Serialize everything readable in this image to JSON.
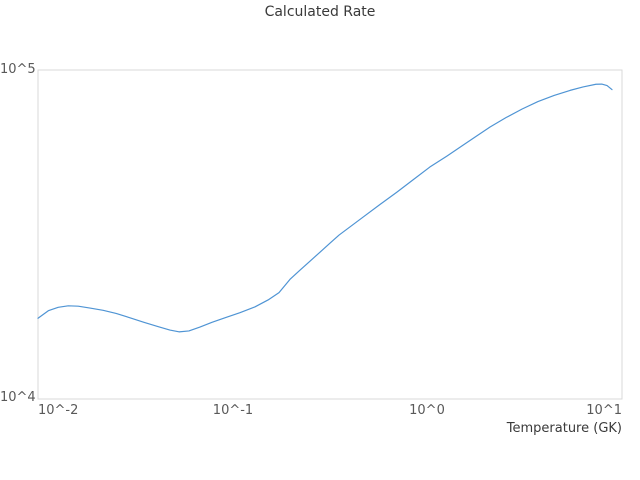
{
  "chart_data": {
    "type": "line",
    "title": "Calculated Rate",
    "xlabel": "Temperature (GK)",
    "ylabel": "",
    "x_scale": "log",
    "y_scale": "log",
    "xlim": [
      0.01,
      10
    ],
    "ylim": [
      10000,
      100000
    ],
    "grid": false,
    "legend": false,
    "x_tick_labels": [
      "10^-2",
      "10^-1",
      "10^0",
      "10^1"
    ],
    "x_tick_values": [
      0.01,
      0.1,
      1,
      10
    ],
    "y_tick_labels": [
      "10^4",
      "10^5"
    ],
    "y_tick_values": [
      10000,
      100000
    ],
    "series": [
      {
        "name": "calculated-rate",
        "color": "#4f94d4",
        "points": [
          [
            0.01,
            17600
          ],
          [
            0.0113,
            18550
          ],
          [
            0.0127,
            19000
          ],
          [
            0.0143,
            19200
          ],
          [
            0.0161,
            19150
          ],
          [
            0.0185,
            18900
          ],
          [
            0.0216,
            18600
          ],
          [
            0.0252,
            18200
          ],
          [
            0.0297,
            17650
          ],
          [
            0.035,
            17100
          ],
          [
            0.0413,
            16600
          ],
          [
            0.0476,
            16200
          ],
          [
            0.053,
            16000
          ],
          [
            0.0596,
            16100
          ],
          [
            0.0679,
            16550
          ],
          [
            0.0783,
            17100
          ],
          [
            0.0924,
            17700
          ],
          [
            0.109,
            18300
          ],
          [
            0.13,
            19050
          ],
          [
            0.152,
            20000
          ],
          [
            0.173,
            21050
          ],
          [
            0.197,
            23100
          ],
          [
            0.222,
            24650
          ],
          [
            0.25,
            26250
          ],
          [
            0.281,
            27950
          ],
          [
            0.316,
            29750
          ],
          [
            0.352,
            31500
          ],
          [
            0.467,
            35700
          ],
          [
            0.571,
            39000
          ],
          [
            0.698,
            42550
          ],
          [
            0.844,
            46350
          ],
          [
            1.03,
            50700
          ],
          [
            1.26,
            54750
          ],
          [
            1.53,
            59150
          ],
          [
            1.78,
            62850
          ],
          [
            2.1,
            67100
          ],
          [
            2.54,
            71700
          ],
          [
            3.07,
            76100
          ],
          [
            3.7,
            80200
          ],
          [
            4.48,
            83700
          ],
          [
            5.41,
            86700
          ],
          [
            6.31,
            88800
          ],
          [
            7.35,
            90500
          ],
          [
            7.87,
            90600
          ],
          [
            8.38,
            89700
          ],
          [
            8.88,
            87200
          ]
        ]
      }
    ]
  },
  "colors": {
    "line": "#4f94d4",
    "plot_border": "#d9d9d9",
    "title_text": "#3a3a3a",
    "tick_text": "#595959",
    "background": "#ffffff"
  }
}
